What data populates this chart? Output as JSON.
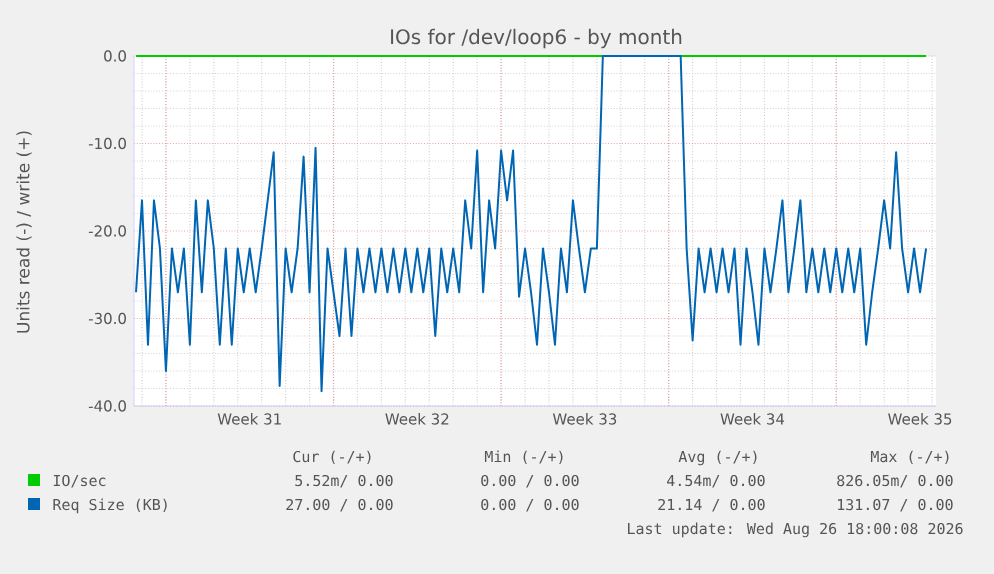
{
  "chart_data": {
    "type": "line",
    "title": "IOs for /dev/loop6 - by month",
    "ylabel": "Units read (-) / write (+)",
    "xlim": [
      "2026-07-25T16:00",
      "2026-08-28T04:00"
    ],
    "ylim": [
      -40,
      0
    ],
    "xticks": [
      {
        "value": "2026-07-27",
        "label": null
      },
      {
        "value": "2026-07-30T12:00",
        "label": "Week 31"
      },
      {
        "value": "2026-08-03",
        "label": null
      },
      {
        "value": "2026-08-06T12:00",
        "label": "Week 32"
      },
      {
        "value": "2026-08-10",
        "label": null
      },
      {
        "value": "2026-08-13T12:00",
        "label": "Week 33"
      },
      {
        "value": "2026-08-17",
        "label": null
      },
      {
        "value": "2026-08-20T12:00",
        "label": "Week 34"
      },
      {
        "value": "2026-08-24",
        "label": null
      },
      {
        "value": "2026-08-27T12:00",
        "label": "Week 35"
      }
    ],
    "yticks": [
      {
        "value": -40,
        "label": "-40.0"
      },
      {
        "value": -30,
        "label": "-30.0"
      },
      {
        "value": -20,
        "label": "-20.0"
      },
      {
        "value": -10,
        "label": "-10.0"
      },
      {
        "value": 0,
        "label": "0.0"
      }
    ],
    "grid": true,
    "legend": "bottom",
    "series": [
      {
        "name": "IO/sec",
        "color": "#00cc00",
        "x": [
          "2026-07-25T18:00",
          "2026-08-27T18:00"
        ],
        "values": [
          0,
          0
        ]
      },
      {
        "name": "Req Size (KB)",
        "color": "#0066b3",
        "x": [
          "2026-07-25T18:00",
          "2026-07-26T00:00",
          "2026-07-26T06:00",
          "2026-07-26T12:00",
          "2026-07-26T18:00",
          "2026-07-27T00:00",
          "2026-07-27T06:00",
          "2026-07-27T12:00",
          "2026-07-27T18:00",
          "2026-07-28T00:00",
          "2026-07-28T06:00",
          "2026-07-28T12:00",
          "2026-07-28T18:00",
          "2026-07-29T00:00",
          "2026-07-29T06:00",
          "2026-07-29T12:00",
          "2026-07-29T18:00",
          "2026-07-30T00:00",
          "2026-07-30T06:00",
          "2026-07-30T12:00",
          "2026-07-30T18:00",
          "2026-07-31T00:00",
          "2026-07-31T06:00",
          "2026-07-31T12:00",
          "2026-07-31T18:00",
          "2026-08-01T00:00",
          "2026-08-01T06:00",
          "2026-08-01T12:00",
          "2026-08-01T18:00",
          "2026-08-02T00:00",
          "2026-08-02T06:00",
          "2026-08-02T12:00",
          "2026-08-02T18:00",
          "2026-08-03T00:00",
          "2026-08-03T06:00",
          "2026-08-03T12:00",
          "2026-08-03T18:00",
          "2026-08-04T00:00",
          "2026-08-04T06:00",
          "2026-08-04T12:00",
          "2026-08-04T18:00",
          "2026-08-05T00:00",
          "2026-08-05T06:00",
          "2026-08-05T12:00",
          "2026-08-05T18:00",
          "2026-08-06T00:00",
          "2026-08-06T06:00",
          "2026-08-06T12:00",
          "2026-08-06T18:00",
          "2026-08-07T00:00",
          "2026-08-07T06:00",
          "2026-08-07T12:00",
          "2026-08-07T18:00",
          "2026-08-08T00:00",
          "2026-08-08T06:00",
          "2026-08-08T12:00",
          "2026-08-08T18:00",
          "2026-08-09T00:00",
          "2026-08-09T06:00",
          "2026-08-09T12:00",
          "2026-08-09T18:00",
          "2026-08-10T00:00",
          "2026-08-10T06:00",
          "2026-08-10T12:00",
          "2026-08-10T18:00",
          "2026-08-11T00:00",
          "2026-08-11T06:00",
          "2026-08-11T12:00",
          "2026-08-11T18:00",
          "2026-08-12T00:00",
          "2026-08-12T06:00",
          "2026-08-12T12:00",
          "2026-08-12T18:00",
          "2026-08-13T00:00",
          "2026-08-13T06:00",
          "2026-08-13T12:00",
          "2026-08-13T18:00",
          "2026-08-14T00:00",
          "2026-08-14T06:00",
          "2026-08-14T12:00",
          "2026-08-14T18:00",
          "2026-08-15T00:00",
          "2026-08-15T06:00",
          "2026-08-15T12:00",
          "2026-08-15T18:00",
          "2026-08-16T00:00",
          "2026-08-16T06:00",
          "2026-08-16T12:00",
          "2026-08-16T18:00",
          "2026-08-17T00:00",
          "2026-08-17T06:00",
          "2026-08-17T12:00",
          "2026-08-17T18:00",
          "2026-08-18T00:00",
          "2026-08-18T06:00",
          "2026-08-18T12:00",
          "2026-08-18T18:00",
          "2026-08-19T00:00",
          "2026-08-19T06:00",
          "2026-08-19T12:00",
          "2026-08-19T18:00",
          "2026-08-20T00:00",
          "2026-08-20T06:00",
          "2026-08-20T12:00",
          "2026-08-20T18:00",
          "2026-08-21T00:00",
          "2026-08-21T06:00",
          "2026-08-21T12:00",
          "2026-08-21T18:00",
          "2026-08-22T00:00",
          "2026-08-22T06:00",
          "2026-08-22T12:00",
          "2026-08-22T18:00",
          "2026-08-23T00:00",
          "2026-08-23T06:00",
          "2026-08-23T12:00",
          "2026-08-23T18:00",
          "2026-08-24T00:00",
          "2026-08-24T06:00",
          "2026-08-24T12:00",
          "2026-08-24T18:00",
          "2026-08-25T00:00",
          "2026-08-25T06:00",
          "2026-08-25T12:00",
          "2026-08-25T18:00",
          "2026-08-26T00:00",
          "2026-08-26T06:00",
          "2026-08-26T12:00",
          "2026-08-26T18:00",
          "2026-08-27T00:00",
          "2026-08-27T06:00",
          "2026-08-27T12:00",
          "2026-08-27T18:00"
        ],
        "values": [
          -27,
          -16.5,
          -33,
          -16.5,
          -22,
          -36,
          -22,
          -27,
          -22,
          -33,
          -16.5,
          -27,
          -16.5,
          -22,
          -33,
          -22,
          -33,
          -22,
          -27,
          -22,
          -27,
          -22,
          -16.5,
          -11,
          -37.7,
          -22,
          -27,
          -22,
          -11.5,
          -27,
          -10.5,
          -38.3,
          -22,
          -27,
          -32,
          -22,
          -32,
          -22,
          -27,
          -22,
          -27,
          -22,
          -27,
          -22,
          -27,
          -22,
          -27,
          -22,
          -27,
          -22,
          -32,
          -22,
          -27,
          -22,
          -27,
          -16.5,
          -22,
          -10.8,
          -27,
          -16.5,
          -22,
          -10.8,
          -16.5,
          -10.8,
          -27.5,
          -22,
          -27,
          -33,
          -22,
          -27,
          -33,
          -22,
          -27,
          -16.5,
          -22,
          -27,
          -22,
          -22,
          0,
          0,
          0,
          0,
          0,
          0,
          0,
          0,
          0,
          0,
          0,
          0,
          0,
          0,
          -22,
          -32.5,
          -22,
          -27,
          -22,
          -27,
          -22,
          -27,
          -22,
          -33,
          -22,
          -27,
          -33,
          -22,
          -27,
          -22,
          -16.5,
          -27,
          -22,
          -16.5,
          -27,
          -22,
          -27,
          -22,
          -27,
          -22,
          -27,
          -22,
          -27,
          -22,
          -33,
          -27,
          -22,
          -16.5,
          -22,
          -11,
          -22,
          -27,
          -22,
          -27,
          -22
        ]
      }
    ],
    "annotations": [
      "Cur (-/+)",
      "Min (-/+)",
      "Avg (-/+)",
      "Max (-/+)",
      "5.52m/ 0.00",
      "0.00 / 0.00",
      "4.54m/ 0.00",
      "826.05m/ 0.00",
      "27.00 / 0.00",
      "0.00 / 0.00",
      "21.14 / 0.00",
      "131.07 / 0.00",
      "Last update: Wed Aug 26 18:00:08 2026"
    ]
  }
}
